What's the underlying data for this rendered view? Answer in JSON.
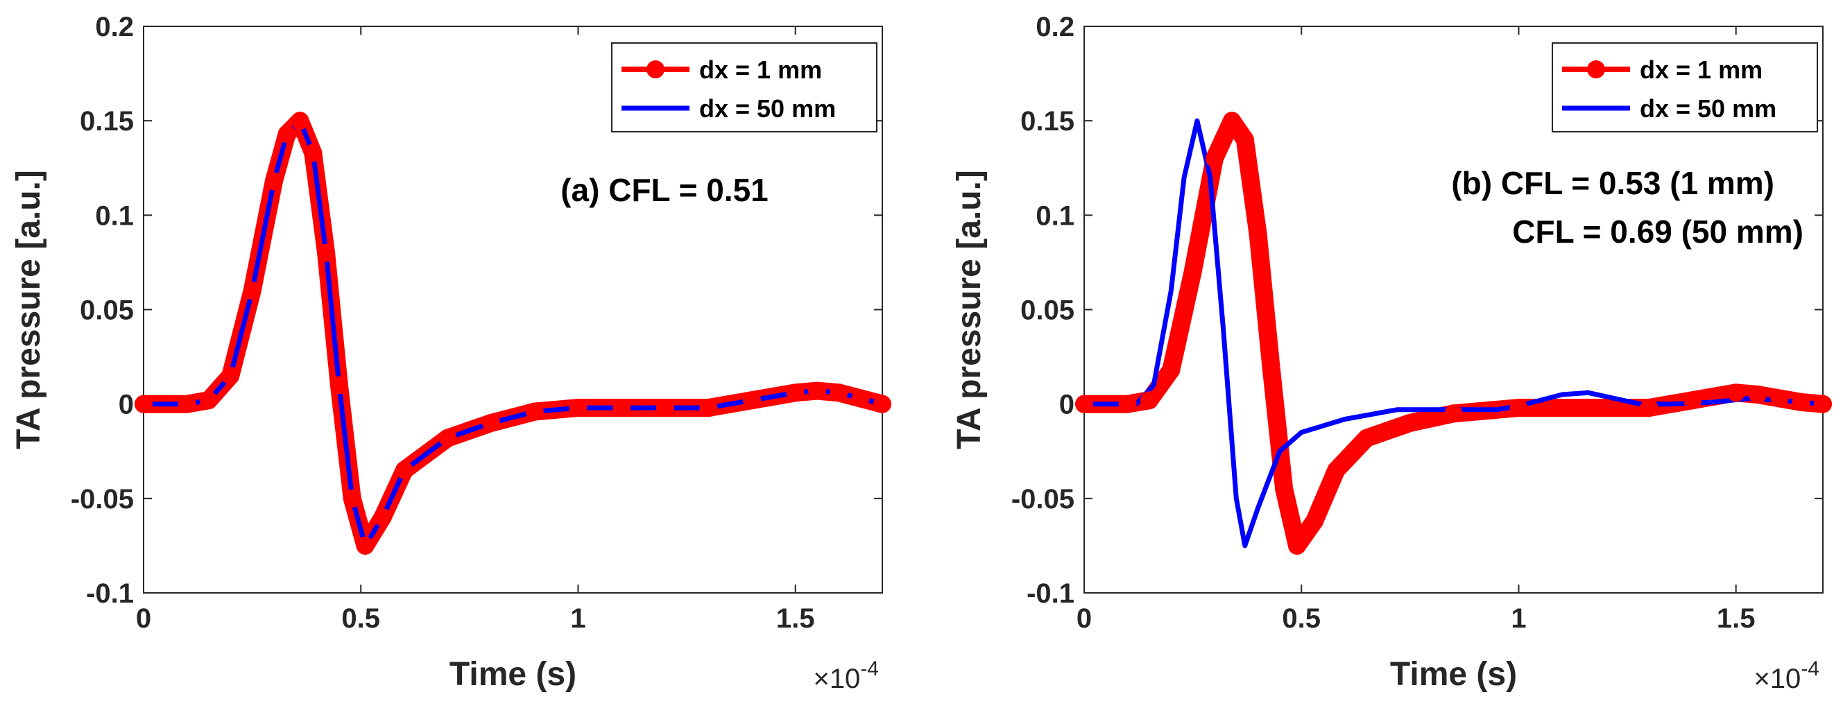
{
  "chart_data": [
    {
      "type": "line",
      "annotation": [
        "(a) CFL = 0.51"
      ],
      "xlabel": "Time (s)",
      "ylabel": "TA pressure [a.u.]",
      "x_multiplier": "×10",
      "x_exponent": "-4",
      "xlim": [
        0,
        1.7
      ],
      "ylim": [
        -0.1,
        0.2
      ],
      "x_ticks": [
        0,
        0.5,
        1,
        1.5
      ],
      "x_tick_labels": [
        "0",
        "0.5",
        "1",
        "1.5"
      ],
      "y_ticks": [
        -0.1,
        -0.05,
        0,
        0.05,
        0.1,
        0.15,
        0.2
      ],
      "y_tick_labels": [
        "-0.1",
        "-0.05",
        "0",
        "0.05",
        "0.1",
        "0.15",
        "0.2"
      ],
      "legend_position": "top-right",
      "series": [
        {
          "name": "dx = 1 mm",
          "color": "#ff0000",
          "marker": "circle",
          "x": [
            0,
            0.1,
            0.15,
            0.2,
            0.25,
            0.3,
            0.33,
            0.36,
            0.39,
            0.42,
            0.45,
            0.48,
            0.51,
            0.55,
            0.6,
            0.7,
            0.8,
            0.9,
            1.0,
            1.1,
            1.2,
            1.3,
            1.4,
            1.5,
            1.55,
            1.6,
            1.65,
            1.7
          ],
          "y": [
            0,
            0,
            0.002,
            0.015,
            0.06,
            0.118,
            0.143,
            0.15,
            0.133,
            0.08,
            0.01,
            -0.05,
            -0.075,
            -0.06,
            -0.035,
            -0.018,
            -0.01,
            -0.004,
            -0.002,
            -0.002,
            -0.002,
            -0.002,
            0.002,
            0.006,
            0.007,
            0.006,
            0.003,
            0
          ]
        },
        {
          "name": "dx = 50 mm",
          "color": "#0000ff",
          "marker": "none",
          "x": [
            0,
            0.1,
            0.15,
            0.2,
            0.25,
            0.3,
            0.33,
            0.36,
            0.39,
            0.42,
            0.45,
            0.48,
            0.51,
            0.55,
            0.6,
            0.7,
            0.8,
            0.9,
            1.0,
            1.1,
            1.2,
            1.3,
            1.4,
            1.5,
            1.55,
            1.6,
            1.65,
            1.7
          ],
          "y": [
            0,
            0,
            0.002,
            0.015,
            0.06,
            0.118,
            0.143,
            0.15,
            0.133,
            0.08,
            0.01,
            -0.05,
            -0.075,
            -0.06,
            -0.035,
            -0.018,
            -0.01,
            -0.004,
            -0.002,
            -0.002,
            -0.002,
            -0.002,
            0.002,
            0.006,
            0.007,
            0.006,
            0.003,
            0
          ]
        }
      ]
    },
    {
      "type": "line",
      "annotation": [
        "(b) CFL = 0.53 (1 mm)",
        "CFL = 0.69 (50 mm)"
      ],
      "xlabel": "Time (s)",
      "ylabel": "TA pressure [a.u.]",
      "x_multiplier": "×10",
      "x_exponent": "-4",
      "xlim": [
        0,
        1.7
      ],
      "ylim": [
        -0.1,
        0.2
      ],
      "x_ticks": [
        0,
        0.5,
        1,
        1.5
      ],
      "x_tick_labels": [
        "0",
        "0.5",
        "1",
        "1.5"
      ],
      "y_ticks": [
        -0.1,
        -0.05,
        0,
        0.05,
        0.1,
        0.15,
        0.2
      ],
      "y_tick_labels": [
        "-0.1",
        "-0.05",
        "0",
        "0.05",
        "0.1",
        "0.15",
        "0.2"
      ],
      "legend_position": "top-right",
      "series": [
        {
          "name": "dx = 1 mm",
          "color": "#ff0000",
          "marker": "circle",
          "x": [
            0,
            0.1,
            0.15,
            0.2,
            0.25,
            0.3,
            0.34,
            0.37,
            0.4,
            0.43,
            0.46,
            0.49,
            0.53,
            0.58,
            0.65,
            0.75,
            0.85,
            1.0,
            1.1,
            1.2,
            1.3,
            1.4,
            1.5,
            1.55,
            1.6,
            1.65,
            1.7
          ],
          "y": [
            0,
            0,
            0.002,
            0.018,
            0.07,
            0.13,
            0.15,
            0.14,
            0.09,
            0.02,
            -0.045,
            -0.075,
            -0.062,
            -0.035,
            -0.018,
            -0.01,
            -0.005,
            -0.002,
            -0.002,
            -0.002,
            -0.002,
            0.002,
            0.006,
            0.005,
            0.003,
            0.001,
            0
          ]
        },
        {
          "name": "dx = 50 mm",
          "color": "#0000ff",
          "marker": "none",
          "x": [
            0,
            0.12,
            0.16,
            0.2,
            0.23,
            0.26,
            0.29,
            0.32,
            0.35,
            0.37,
            0.4,
            0.45,
            0.5,
            0.6,
            0.72,
            0.85,
            0.95,
            1.0,
            1.05,
            1.1,
            1.16,
            1.22,
            1.28,
            1.35,
            1.45,
            1.53,
            1.6,
            1.7
          ],
          "y": [
            0,
            0,
            0.01,
            0.06,
            0.12,
            0.15,
            0.12,
            0.04,
            -0.05,
            -0.075,
            -0.055,
            -0.025,
            -0.015,
            -0.008,
            -0.003,
            -0.003,
            -0.003,
            -0.001,
            0.002,
            0.005,
            0.006,
            0.003,
            0,
            0,
            0.001,
            0.003,
            0.002,
            0
          ]
        }
      ]
    }
  ]
}
